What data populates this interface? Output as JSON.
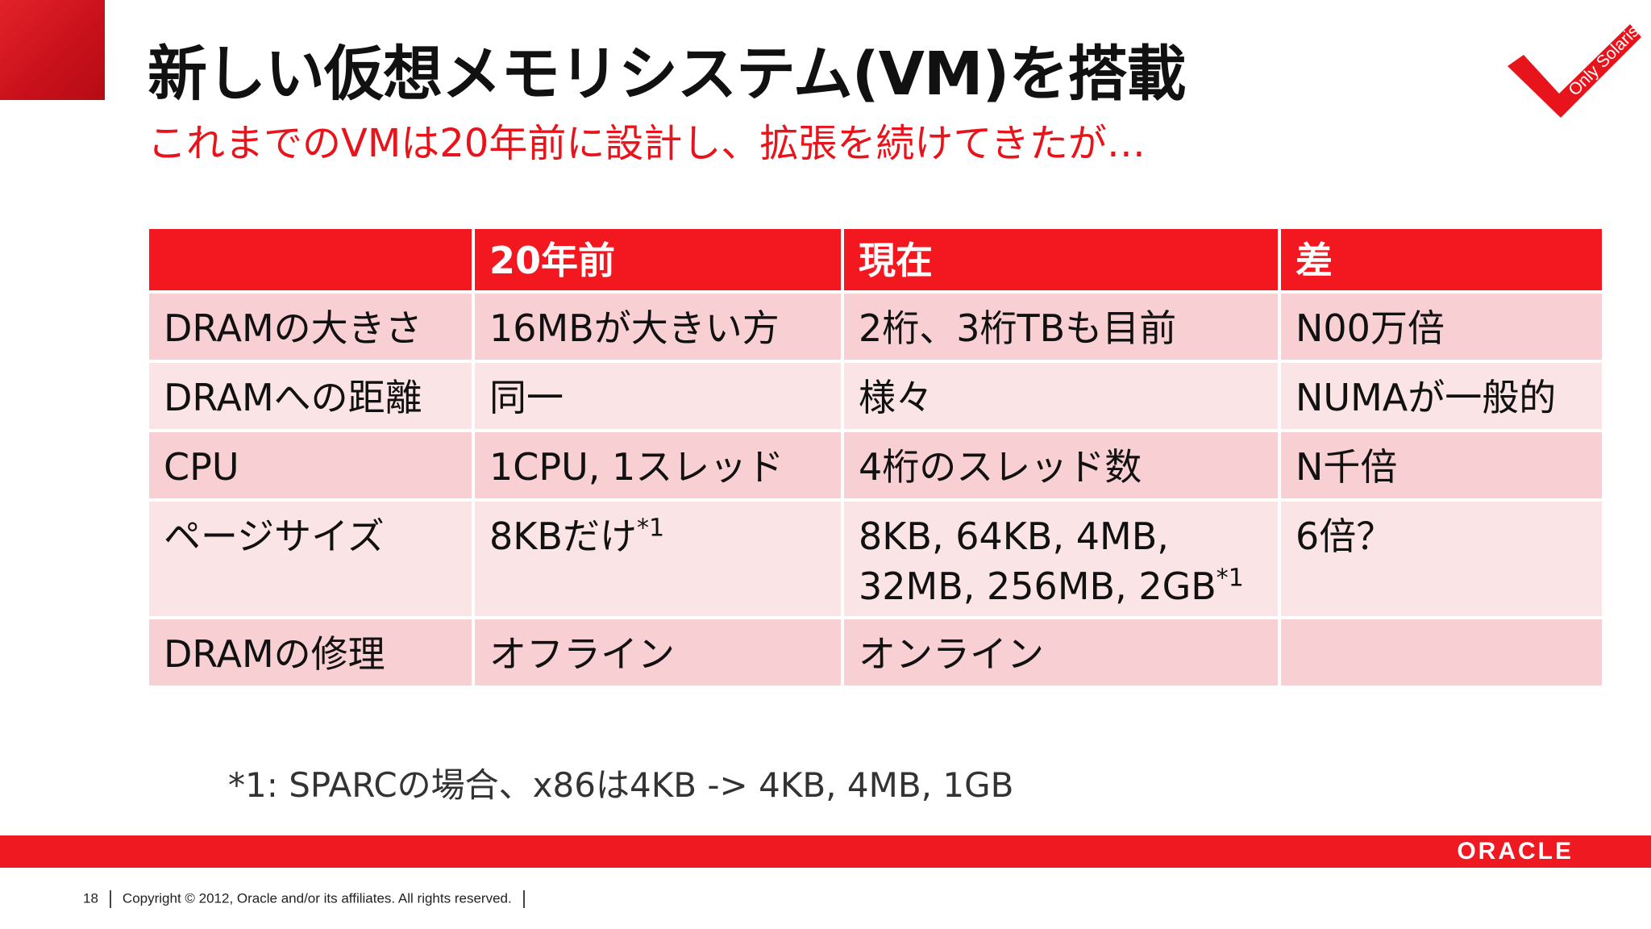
{
  "title": "新しい仮想メモリシステム(VM)を搭載",
  "subtitle": "これまでのVMは20年前に設計し、拡張を続けてきたが…",
  "badge": {
    "text": "Only Solaris",
    "icon": "checkmark-icon",
    "color": "#e8141c"
  },
  "table": {
    "headers": [
      "",
      "20年前",
      "現在",
      "差"
    ],
    "rows": [
      {
        "label": "DRAMの大きさ",
        "past": "16MBが大きい方",
        "now": "2桁、3桁TBも目前",
        "diff": "N00万倍"
      },
      {
        "label": "DRAMへの距離",
        "past": "同一",
        "now": "様々",
        "diff": "NUMAが一般的"
      },
      {
        "label": "CPU",
        "past": "1CPU, 1スレッド",
        "now": "4桁のスレッド数",
        "diff": "N千倍"
      },
      {
        "label": "ページサイズ",
        "past": "8KBだけ",
        "past_note": "*1",
        "now": "8KB, 64KB, 4MB,",
        "now_line2": "32MB, 256MB, 2GB",
        "now_note": "*1",
        "diff": "6倍？"
      },
      {
        "label": "DRAMの修理",
        "past": "オフライン",
        "now": "オンライン",
        "diff": ""
      }
    ]
  },
  "footnote": "*1: SPARCの場合、x86は4KB -> 4KB, 4MB, 1GB",
  "footer": {
    "page_number": "18",
    "copyright": "Copyright © 2012, Oracle and/or its affiliates. All rights reserved.",
    "logo_text": "ORACLE"
  },
  "colors": {
    "accent": "#e8141c",
    "header_bg": "#f3181f",
    "row_odd": "#f8cfd3",
    "row_even": "#fbe4e6"
  }
}
